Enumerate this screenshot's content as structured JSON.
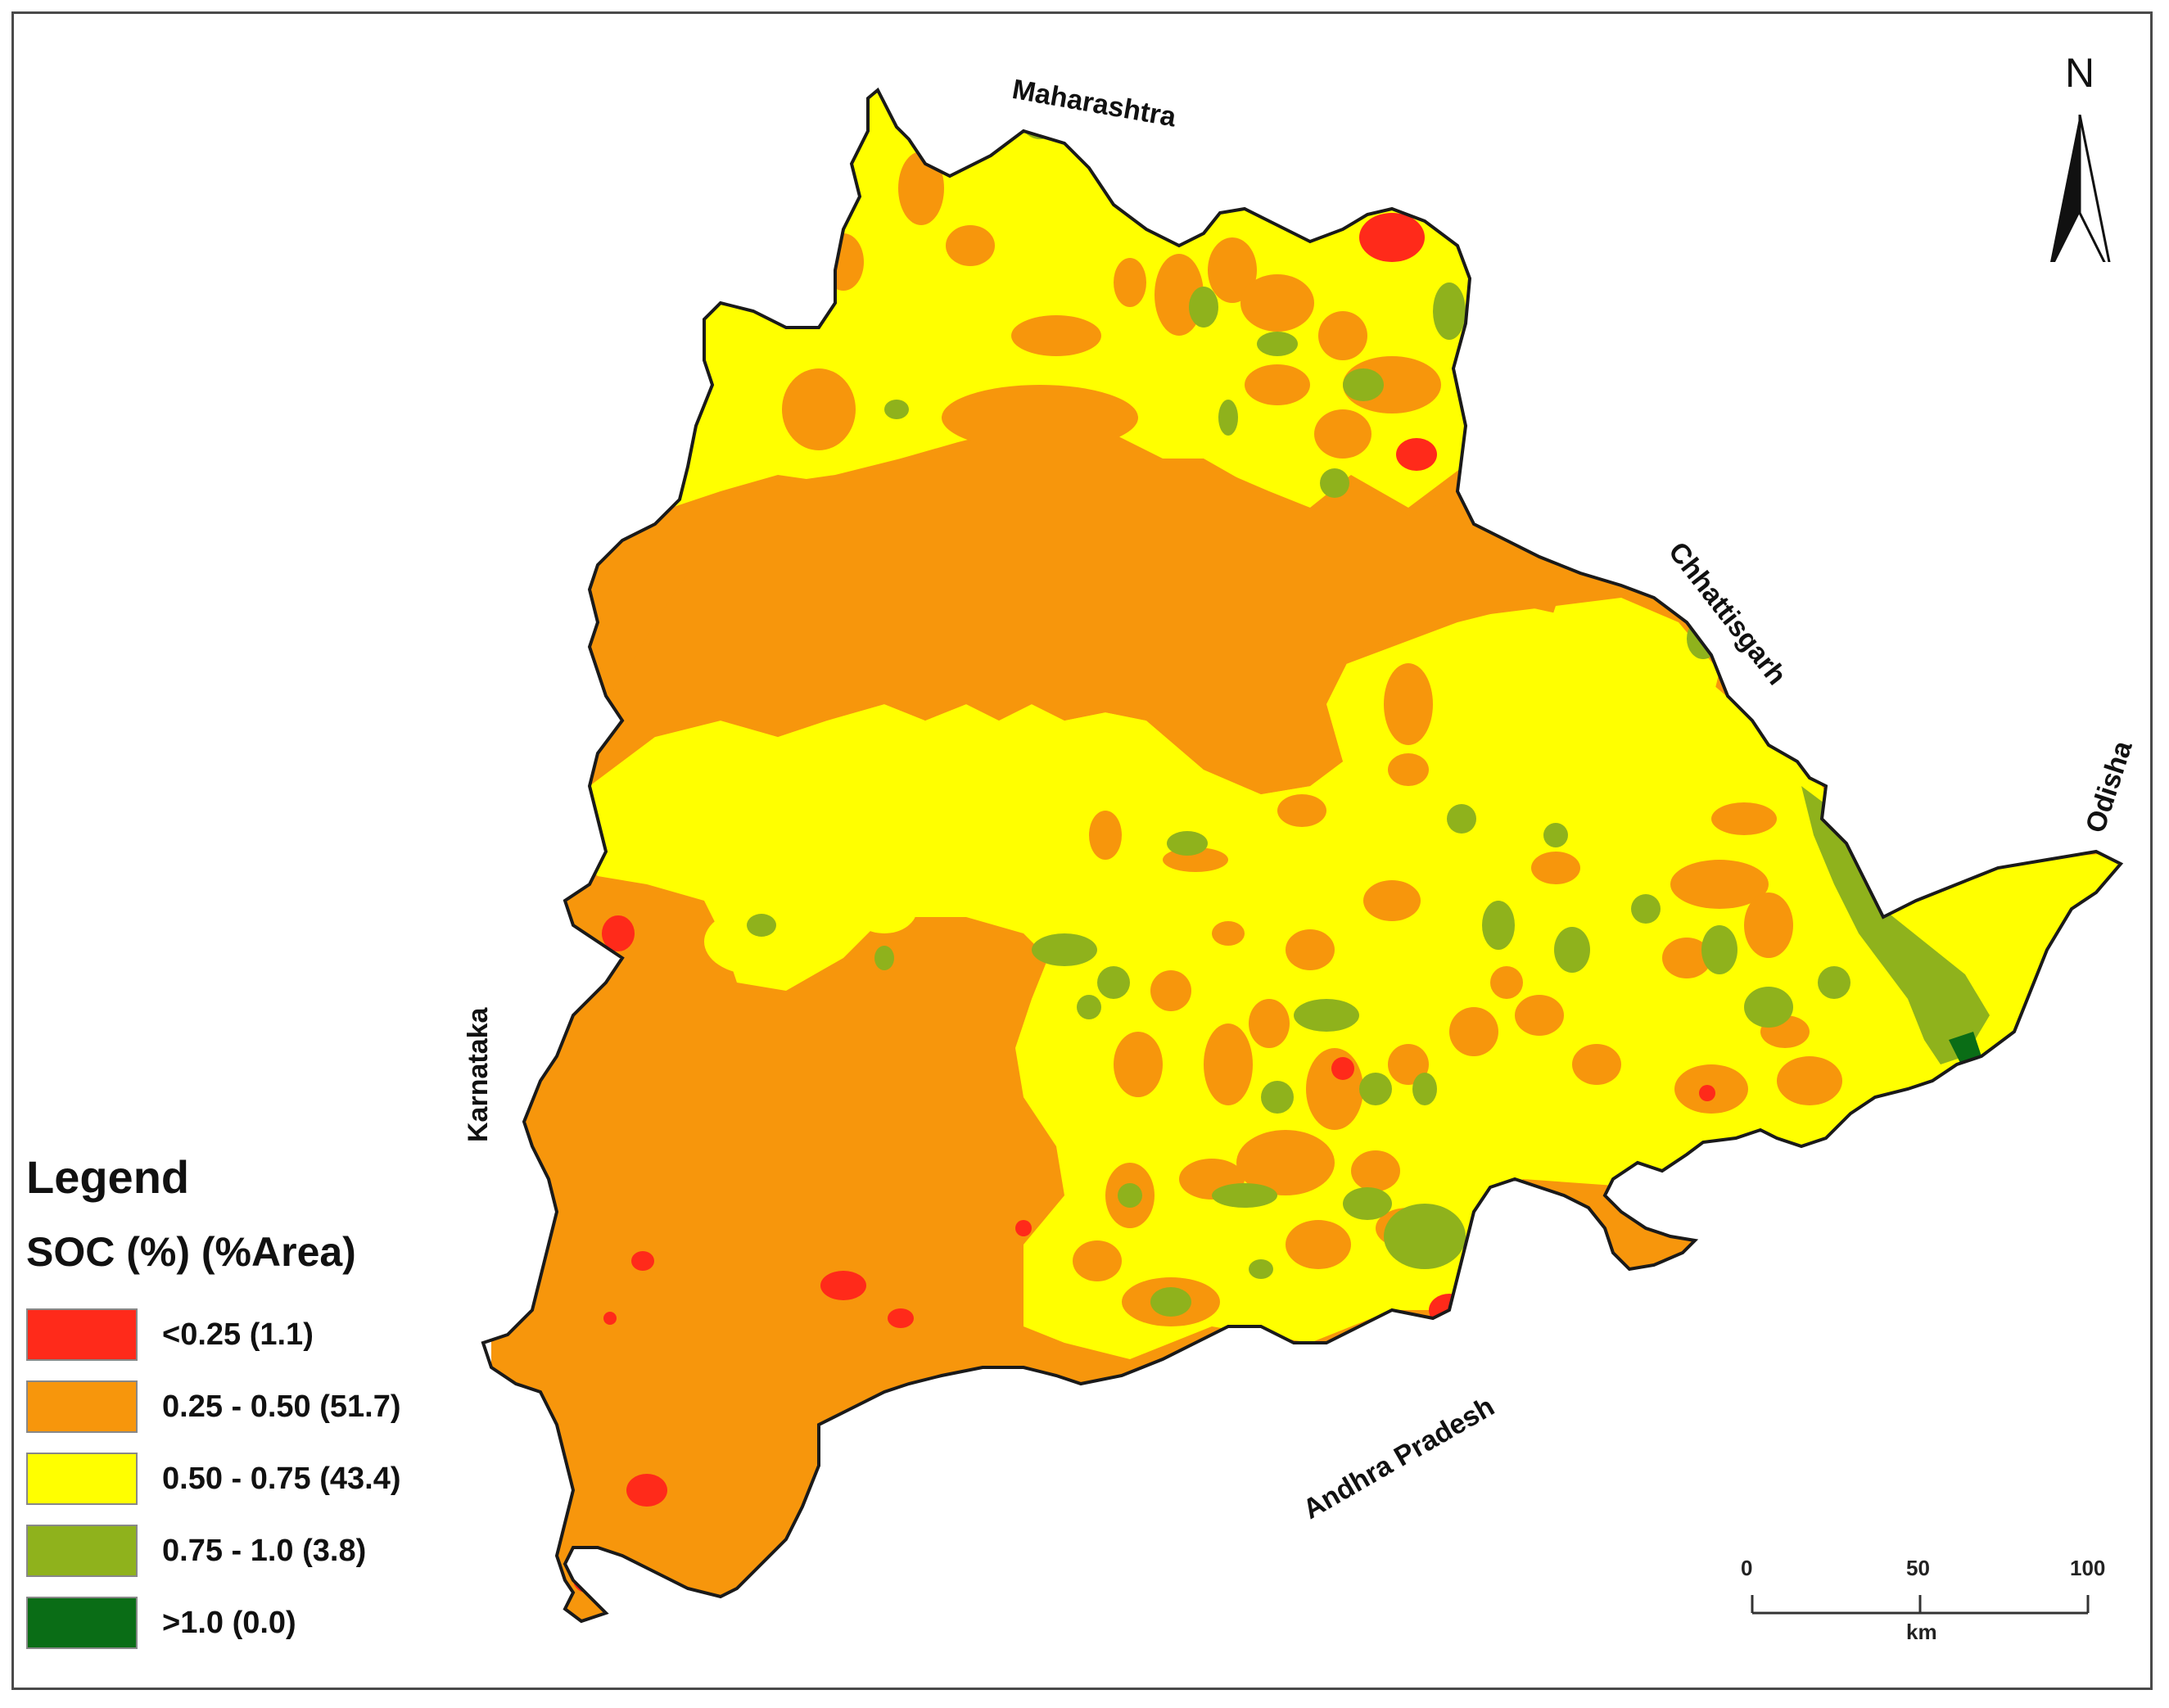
{
  "legend": {
    "title": "Legend",
    "subtitle": "SOC (%) (%Area)",
    "items": [
      {
        "label": "<0.25 (1.1)",
        "color": "#ff2a1a"
      },
      {
        "label": "0.25 - 0.50 (51.7)",
        "color": "#f7960c"
      },
      {
        "label": "0.50 - 0.75 (43.4)",
        "color": "#ffff00"
      },
      {
        "label": "0.75 - 1.0 (3.8)",
        "color": "#8fb21c"
      },
      {
        "label": ">1.0 (0.0)",
        "color": "#0a6d16"
      }
    ]
  },
  "neighbors": {
    "north": "Maharashtra",
    "northeast": "Chhattisgarh",
    "east": "Odisha",
    "southeast": "Andhra Pradesh",
    "west": "Karnataka"
  },
  "north_arrow": {
    "label": "N"
  },
  "scale_bar": {
    "ticks": [
      "0",
      "50",
      "100"
    ],
    "unit": "km"
  },
  "colors": {
    "boundary": "#1a1a1a",
    "very_low": "#ff2a1a",
    "low": "#f7960c",
    "medium": "#ffff00",
    "high": "#8fb21c",
    "very_high": "#0a6d16"
  }
}
